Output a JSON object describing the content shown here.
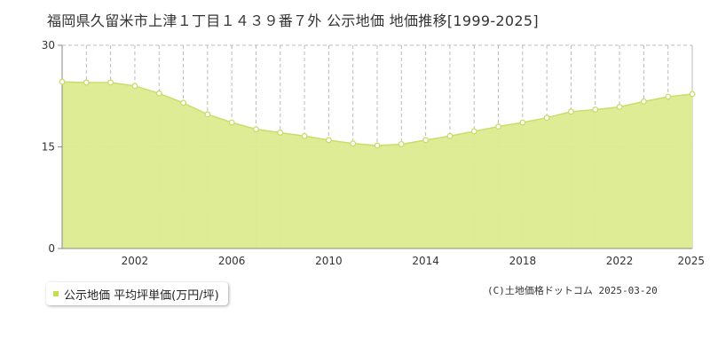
{
  "title": "福岡県久留米市上津１丁目１４３９番７外 公示地価 地価推移[1999-2025]",
  "legend": {
    "label": "公示地価 平均坪単価(万円/坪)"
  },
  "credit": "(C)土地価格ドットコム 2025-03-20",
  "colors": {
    "area_fill": "#dcec8f",
    "line": "#c8de6c",
    "point_fill": "#ffffff",
    "point_stroke": "#c7dd6a",
    "grid": "#bbbbbb",
    "axis": "#888888",
    "legend_swatch": "#bfe04f"
  },
  "chart_data": {
    "type": "area",
    "x": [
      1999,
      2000,
      2001,
      2002,
      2003,
      2004,
      2005,
      2006,
      2007,
      2008,
      2009,
      2010,
      2011,
      2012,
      2013,
      2014,
      2015,
      2016,
      2017,
      2018,
      2019,
      2020,
      2021,
      2022,
      2023,
      2024,
      2025
    ],
    "series": [
      {
        "name": "公示地価 平均坪単価(万円/坪)",
        "values": [
          24.6,
          24.5,
          24.5,
          24.0,
          22.9,
          21.5,
          19.8,
          18.6,
          17.6,
          17.1,
          16.6,
          16.0,
          15.5,
          15.2,
          15.4,
          16.0,
          16.6,
          17.3,
          18.0,
          18.6,
          19.3,
          20.2,
          20.5,
          20.9,
          21.7,
          22.4,
          22.8
        ]
      }
    ],
    "x_ticks": [
      "2002",
      "2006",
      "2010",
      "2014",
      "2018",
      "2022",
      "2025"
    ],
    "y_ticks": [
      "0",
      "15",
      "30"
    ],
    "xlim": [
      1999,
      2025
    ],
    "ylim": [
      0,
      30
    ],
    "grid": true,
    "legend_position": "bottom-left"
  }
}
